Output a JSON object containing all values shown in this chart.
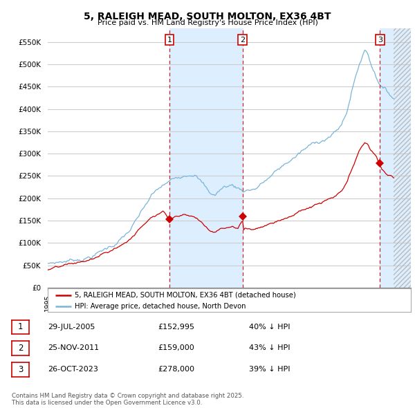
{
  "title": "5, RALEIGH MEAD, SOUTH MOLTON, EX36 4BT",
  "subtitle": "Price paid vs. HM Land Registry's House Price Index (HPI)",
  "ylim": [
    0,
    580000
  ],
  "yticks": [
    0,
    50000,
    100000,
    150000,
    200000,
    250000,
    300000,
    350000,
    400000,
    450000,
    500000,
    550000
  ],
  "xlim_start": 1995.0,
  "xlim_end": 2026.5,
  "hpi_color": "#7ab4d8",
  "price_color": "#cc0000",
  "vline_color": "#cc0000",
  "shade_color": "#ddeeff",
  "grid_color": "#cccccc",
  "bg_color": "#ffffff",
  "legend_label_price": "5, RALEIGH MEAD, SOUTH MOLTON, EX36 4BT (detached house)",
  "legend_label_hpi": "HPI: Average price, detached house, North Devon",
  "sale_dates": [
    2005.573,
    2011.899,
    2023.817
  ],
  "sale_prices": [
    152995,
    159000,
    278000
  ],
  "sale_labels": [
    "1",
    "2",
    "3"
  ],
  "table_rows": [
    [
      "1",
      "29-JUL-2005",
      "£152,995",
      "40% ↓ HPI"
    ],
    [
      "2",
      "25-NOV-2011",
      "£159,000",
      "43% ↓ HPI"
    ],
    [
      "3",
      "26-OCT-2023",
      "£278,000",
      "39% ↓ HPI"
    ]
  ],
  "footnote": "Contains HM Land Registry data © Crown copyright and database right 2025.\nThis data is licensed under the Open Government Licence v3.0."
}
